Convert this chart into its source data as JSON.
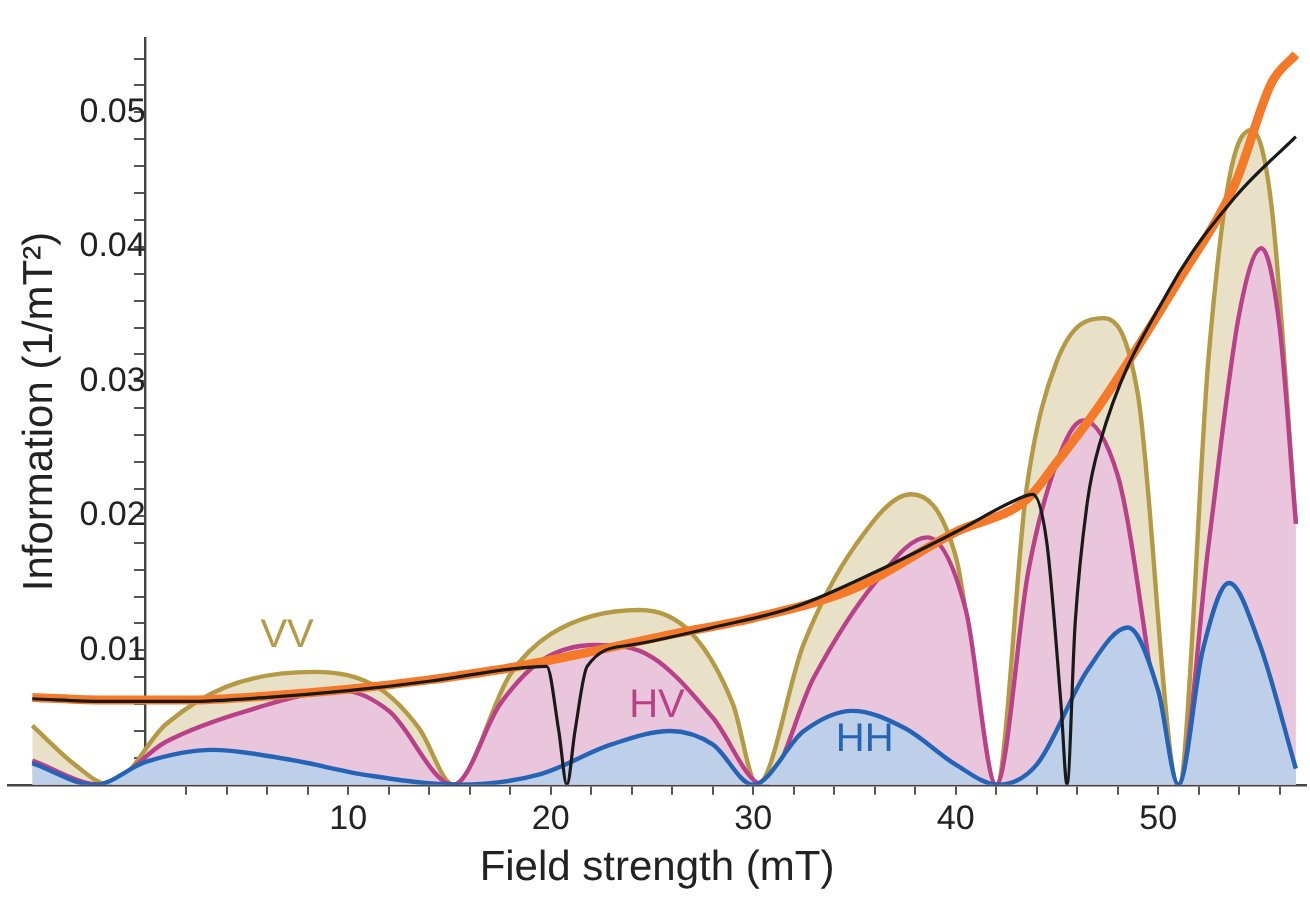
{
  "chart_data": {
    "type": "area",
    "xlabel": "Field strength (mT)",
    "ylabel": "Information (1/mT²)",
    "xlim": [
      -6.8,
      57.3
    ],
    "ylim": [
      0,
      0.0555
    ],
    "xticks": [
      {
        "value": 2,
        "label": null
      },
      {
        "value": 4,
        "label": null
      },
      {
        "value": 6,
        "label": null
      },
      {
        "value": 8,
        "label": null
      },
      10,
      {
        "value": 12,
        "label": null
      },
      {
        "value": 14,
        "label": null
      },
      {
        "value": 16,
        "label": null
      },
      {
        "value": 18,
        "label": null
      },
      20,
      {
        "value": 22,
        "label": null
      },
      {
        "value": 24,
        "label": null
      },
      {
        "value": 26,
        "label": null
      },
      {
        "value": 28,
        "label": null
      },
      30,
      {
        "value": 32,
        "label": null
      },
      {
        "value": 34,
        "label": null
      },
      {
        "value": 36,
        "label": null
      },
      {
        "value": 38,
        "label": null
      },
      40,
      {
        "value": 42,
        "label": null
      },
      {
        "value": 44,
        "label": null
      },
      {
        "value": 46,
        "label": null
      },
      {
        "value": 48,
        "label": null
      },
      50,
      {
        "value": 52,
        "label": null
      },
      {
        "value": 54,
        "label": null
      },
      {
        "value": 56,
        "label": null
      }
    ],
    "yticks": [
      {
        "value": 0.002,
        "label": null
      },
      {
        "value": 0.004,
        "label": null
      },
      {
        "value": 0.006,
        "label": null
      },
      {
        "value": 0.008,
        "label": null
      },
      0.01,
      {
        "value": 0.012,
        "label": null
      },
      {
        "value": 0.014,
        "label": null
      },
      {
        "value": 0.016,
        "label": null
      },
      {
        "value": 0.018,
        "label": null
      },
      0.02,
      {
        "value": 0.022,
        "label": null
      },
      {
        "value": 0.024,
        "label": null
      },
      {
        "value": 0.026,
        "label": null
      },
      {
        "value": 0.028,
        "label": null
      },
      0.03,
      {
        "value": 0.032,
        "label": null
      },
      {
        "value": 0.034,
        "label": null
      },
      {
        "value": 0.036,
        "label": null
      },
      {
        "value": 0.038,
        "label": null
      },
      0.04,
      {
        "value": 0.042,
        "label": null
      },
      {
        "value": 0.044,
        "label": null
      },
      {
        "value": 0.046,
        "label": null
      },
      {
        "value": 0.048,
        "label": null
      },
      0.05,
      {
        "value": 0.052,
        "label": null
      },
      {
        "value": 0.054,
        "label": null
      }
    ],
    "grid": false,
    "legend": false,
    "marker": "none",
    "line_style": "solid",
    "series": [
      {
        "name": "VV",
        "color": "#b59a45",
        "x": [
          -5.6,
          -3.5,
          -1.8,
          1,
          4,
          8.3,
          11.5,
          13.5,
          15.2,
          18,
          20,
          24.4,
          27,
          29,
          30.2,
          32.5,
          35,
          37.8,
          40,
          42,
          43.5,
          45,
          47.3,
          49,
          51,
          52.5,
          53.5,
          54.6,
          55.6,
          56.8
        ],
        "values": [
          0.0044,
          0.0015,
          0,
          0.0045,
          0.0073,
          0.0084,
          0.0072,
          0.0042,
          0,
          0.0082,
          0.0112,
          0.013,
          0.0112,
          0.006,
          0,
          0.0105,
          0.0177,
          0.0216,
          0.017,
          0,
          0.022,
          0.0315,
          0.0347,
          0.029,
          0,
          0.032,
          0.045,
          0.0487,
          0.043,
          0.0194
        ]
      },
      {
        "name": "HV",
        "color": "#b8418a",
        "x": [
          -5.6,
          -2.2,
          1,
          5,
          9.7,
          12,
          15.2,
          17.5,
          19.5,
          22.2,
          25,
          28,
          30.5,
          33,
          36,
          38.6,
          40.5,
          42,
          43.6,
          45,
          46.3,
          48,
          51,
          52.5,
          54,
          55.1,
          56,
          56.8
        ],
        "values": [
          0.0018,
          0,
          0.0032,
          0.0055,
          0.007,
          0.0055,
          0,
          0.006,
          0.0092,
          0.0104,
          0.0095,
          0.005,
          0,
          0.008,
          0.015,
          0.0184,
          0.013,
          0,
          0.016,
          0.024,
          0.0271,
          0.023,
          0,
          0.018,
          0.035,
          0.0399,
          0.034,
          0.0194
        ]
      },
      {
        "name": "HH",
        "color": "#2563b5",
        "x": [
          -5.6,
          -2.5,
          0,
          3.3,
          7,
          11,
          15.5,
          19.5,
          23,
          25.9,
          28,
          30,
          32.5,
          34.9,
          37.5,
          40,
          42.1,
          44,
          46.5,
          48.5,
          50,
          51,
          52.2,
          53.5,
          55,
          56.8
        ],
        "values": [
          0.0016,
          0,
          0.0017,
          0.0026,
          0.0019,
          0.0007,
          0,
          0.0008,
          0.003,
          0.004,
          0.003,
          0,
          0.004,
          0.0055,
          0.0042,
          0.0015,
          0,
          0.0015,
          0.0085,
          0.0117,
          0.007,
          0,
          0.01,
          0.015,
          0.0105,
          0.0012
        ]
      },
      {
        "type": "line",
        "color": "#f47a2a",
        "x": [
          -5.6,
          -2,
          2,
          6,
          10,
          14,
          18,
          22,
          26,
          30,
          35,
          40,
          43.5,
          45,
          47.1,
          51.1,
          53.8,
          55.6,
          56.8
        ],
        "values": [
          0.0065,
          0.0063,
          0.0063,
          0.0066,
          0.0071,
          0.0078,
          0.0087,
          0.0099,
          0.0112,
          0.0124,
          0.0146,
          0.0188,
          0.0212,
          0.024,
          0.0282,
          0.0377,
          0.0447,
          0.0522,
          0.0543
        ]
      },
      {
        "type": "line",
        "color": "#1a1a1a",
        "x": [
          -5.6,
          -2,
          2,
          6,
          10,
          14,
          18,
          19.8,
          20.4,
          20.8,
          21.2,
          21.8,
          24,
          28,
          32,
          36,
          40,
          43,
          43.8,
          44.5,
          45.2,
          45.5,
          45.9,
          46.5,
          47.1,
          50.5,
          53.8,
          56.8
        ],
        "values": [
          0.0064,
          0.0062,
          0.0062,
          0.0065,
          0.007,
          0.0077,
          0.0086,
          0.0088,
          0.004,
          0,
          0.004,
          0.0088,
          0.0104,
          0.0117,
          0.0132,
          0.0158,
          0.0188,
          0.0212,
          0.0216,
          0.018,
          0.006,
          0,
          0.012,
          0.021,
          0.0253,
          0.0367,
          0.0437,
          0.0482
        ]
      }
    ]
  }
}
